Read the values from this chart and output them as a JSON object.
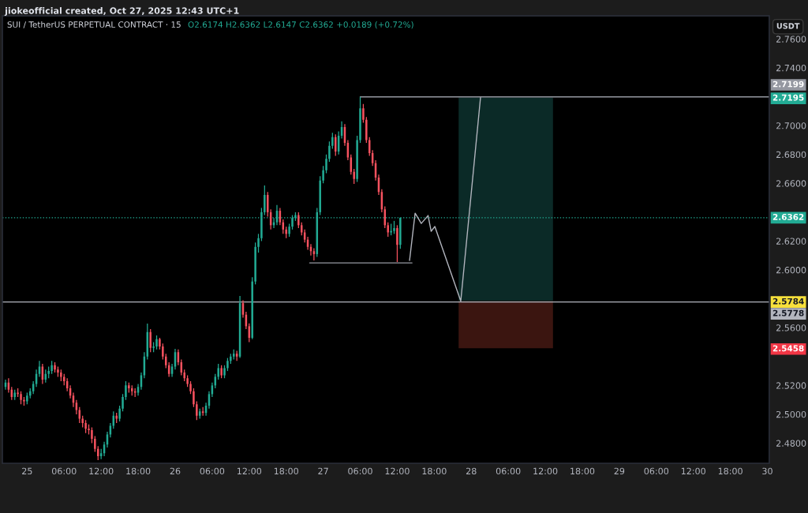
{
  "chart_data": {
    "type": "candlestick",
    "title": "SUI / TetherUS PERPETUAL CONTRACT · 15",
    "subtitle": "O2.6174 H2.6362 L2.6147 C2.6362 +0.0189 (+0.72%)",
    "y2label": "USDT",
    "annotations": [
      "jiokeofficial created, Oct 27, 2025 12:43 UTC+1"
    ],
    "xlim": [
      "2025-10-24T20:00",
      "2025-10-30T00:18"
    ],
    "ylim": [
      2.4661,
      2.776
    ],
    "xticks": [
      {
        "value": "2025-10-25",
        "label": "25"
      },
      {
        "value": "2025-10-25T06:00",
        "label": "06:00"
      },
      {
        "value": "2025-10-25T12:00",
        "label": "12:00"
      },
      {
        "value": "2025-10-25T18:00",
        "label": "18:00"
      },
      {
        "value": "2025-10-26",
        "label": "26"
      },
      {
        "value": "2025-10-26T06:00",
        "label": "06:00"
      },
      {
        "value": "2025-10-26T12:00",
        "label": "12:00"
      },
      {
        "value": "2025-10-26T18:00",
        "label": "18:00"
      },
      {
        "value": "2025-10-27",
        "label": "27"
      },
      {
        "value": "2025-10-27T06:00",
        "label": "06:00"
      },
      {
        "value": "2025-10-27T12:00",
        "label": "12:00"
      },
      {
        "value": "2025-10-27T18:00",
        "label": "18:00"
      },
      {
        "value": "2025-10-28",
        "label": "28"
      },
      {
        "value": "2025-10-28T06:00",
        "label": "06:00"
      },
      {
        "value": "2025-10-28T12:00",
        "label": "12:00"
      },
      {
        "value": "2025-10-28T18:00",
        "label": "18:00"
      },
      {
        "value": "2025-10-29",
        "label": "29"
      },
      {
        "value": "2025-10-29T06:00",
        "label": "06:00"
      },
      {
        "value": "2025-10-29T12:00",
        "label": "12:00"
      },
      {
        "value": "2025-10-29T18:00",
        "label": "18:00"
      },
      {
        "value": "2025-10-30",
        "label": "30"
      }
    ],
    "yticks": [
      {
        "value": 2.48,
        "label": "2.4800"
      },
      {
        "value": 2.5,
        "label": "2.5000"
      },
      {
        "value": 2.52,
        "label": "2.5200"
      },
      {
        "value": 2.56,
        "label": "2.5600"
      },
      {
        "value": 2.6,
        "label": "2.6000"
      },
      {
        "value": 2.62,
        "label": "2.6200"
      },
      {
        "value": 2.66,
        "label": "2.6600"
      },
      {
        "value": 2.68,
        "label": "2.6800"
      },
      {
        "value": 2.7,
        "label": "2.7000"
      },
      {
        "value": 2.74,
        "label": "2.7400"
      },
      {
        "value": 2.76,
        "label": "2.7600"
      }
    ],
    "y2lim": [
      2.4661,
      2.776
    ],
    "y2ticks": [
      2.7195,
      2.5784,
      2.5458
    ],
    "ref_lines": [
      {
        "axis": "y",
        "value": 2.5778,
        "label": "2.5778",
        "color": "#b2b5be",
        "line_style": "solid"
      },
      {
        "axis": "y",
        "value": 2.6362,
        "label": "2.6362",
        "color": "#22ab94",
        "line_style": "dotted"
      }
    ],
    "series": [
      {
        "type": "bar",
        "x": [
          "2025-10-28T05:36"
        ],
        "base": [
          2.5784
        ],
        "values": [
          0.1411
        ],
        "color": "#0b2a27"
      },
      {
        "type": "bar",
        "x": [
          "2025-10-28T05:36"
        ],
        "base": [
          2.5458
        ],
        "values": [
          0.0326
        ],
        "color": "#3b1510"
      },
      {
        "type": "line",
        "x": [
          "2025-10-27T14:00",
          "2025-10-27T14:54",
          "2025-10-27T15:54",
          "2025-10-27T17:00",
          "2025-10-27T17:30",
          "2025-10-27T18:06",
          "2025-10-27T22:18",
          "2025-10-28T01:30"
        ],
        "values": [
          2.6066,
          2.6393,
          2.6322,
          2.6377,
          2.6268,
          2.6301,
          2.5784,
          2.7195
        ],
        "color": "#b2b5be"
      },
      {
        "type": "line",
        "x": [
          "2025-10-26T21:48",
          "2025-10-27T14:24"
        ],
        "values": [
          2.6049,
          2.6049
        ],
        "color": "#9598a1"
      },
      {
        "type": "line",
        "x": [
          "2025-10-27T06:00",
          "2025-10-30T00:18"
        ],
        "values": [
          2.7199,
          2.7199
        ],
        "value_labels": [
          null,
          "2.7199"
        ],
        "color": "#9598a1"
      },
      {
        "x": [
          "2025-10-24T20:30",
          "2025-10-24T21:00",
          "2025-10-24T21:30",
          "2025-10-24T22:00",
          "2025-10-24T22:30",
          "2025-10-24T23:00",
          "2025-10-24T23:30",
          "2025-10-25T00:00",
          "2025-10-25T00:30",
          "2025-10-25T01:00",
          "2025-10-25T01:30",
          "2025-10-25T02:00",
          "2025-10-25T02:30",
          "2025-10-25T03:00",
          "2025-10-25T03:30",
          "2025-10-25T04:00",
          "2025-10-25T04:30",
          "2025-10-25T05:00",
          "2025-10-25T05:30",
          "2025-10-25T06:00",
          "2025-10-25T06:30",
          "2025-10-25T07:00",
          "2025-10-25T07:30",
          "2025-10-25T08:00",
          "2025-10-25T08:30",
          "2025-10-25T09:00",
          "2025-10-25T09:30",
          "2025-10-25T10:00",
          "2025-10-25T10:30",
          "2025-10-25T11:00",
          "2025-10-25T11:30",
          "2025-10-25T12:00",
          "2025-10-25T12:30",
          "2025-10-25T13:00",
          "2025-10-25T13:30",
          "2025-10-25T14:00",
          "2025-10-25T14:30",
          "2025-10-25T15:00",
          "2025-10-25T15:30",
          "2025-10-25T16:00",
          "2025-10-25T16:30",
          "2025-10-25T17:00",
          "2025-10-25T17:30",
          "2025-10-25T18:00",
          "2025-10-25T18:30",
          "2025-10-25T19:00",
          "2025-10-25T19:30",
          "2025-10-25T20:00",
          "2025-10-25T20:30",
          "2025-10-25T21:00",
          "2025-10-25T21:30",
          "2025-10-25T22:00",
          "2025-10-25T22:30",
          "2025-10-25T23:00",
          "2025-10-25T23:30",
          "2025-10-26T00:00",
          "2025-10-26T00:30",
          "2025-10-26T01:00",
          "2025-10-26T01:30",
          "2025-10-26T02:00",
          "2025-10-26T02:30",
          "2025-10-26T03:00",
          "2025-10-26T03:30",
          "2025-10-26T04:00",
          "2025-10-26T04:30",
          "2025-10-26T05:00",
          "2025-10-26T05:30",
          "2025-10-26T06:00",
          "2025-10-26T06:30",
          "2025-10-26T07:00",
          "2025-10-26T07:30",
          "2025-10-26T08:00",
          "2025-10-26T08:30",
          "2025-10-26T09:00",
          "2025-10-26T09:30",
          "2025-10-26T10:00",
          "2025-10-26T10:30",
          "2025-10-26T11:00",
          "2025-10-26T11:30",
          "2025-10-26T12:00",
          "2025-10-26T12:30",
          "2025-10-26T13:00",
          "2025-10-26T13:30",
          "2025-10-26T14:00",
          "2025-10-26T14:30",
          "2025-10-26T15:00",
          "2025-10-26T15:30",
          "2025-10-26T16:00",
          "2025-10-26T16:30",
          "2025-10-26T17:00",
          "2025-10-26T17:30",
          "2025-10-26T18:00",
          "2025-10-26T18:30",
          "2025-10-26T19:00",
          "2025-10-26T19:30",
          "2025-10-26T20:00",
          "2025-10-26T20:30",
          "2025-10-26T21:00",
          "2025-10-26T21:30",
          "2025-10-26T22:00",
          "2025-10-26T22:30",
          "2025-10-26T23:00",
          "2025-10-26T23:30",
          "2025-10-27T00:00",
          "2025-10-27T00:30",
          "2025-10-27T01:00",
          "2025-10-27T01:30",
          "2025-10-27T02:00",
          "2025-10-27T02:30",
          "2025-10-27T03:00",
          "2025-10-27T03:30",
          "2025-10-27T04:00",
          "2025-10-27T04:30",
          "2025-10-27T05:00",
          "2025-10-27T05:30",
          "2025-10-27T06:00",
          "2025-10-27T06:30",
          "2025-10-27T07:00",
          "2025-10-27T07:30",
          "2025-10-27T08:00",
          "2025-10-27T08:30",
          "2025-10-27T09:00",
          "2025-10-27T09:30",
          "2025-10-27T10:00",
          "2025-10-27T10:30",
          "2025-10-27T11:00",
          "2025-10-27T11:30",
          "2025-10-27T12:00",
          "2025-10-27T12:30"
        ],
        "ohlc": [
          [
            2.519,
            2.524,
            2.517,
            2.522
          ],
          [
            2.522,
            2.525,
            2.515,
            2.517
          ],
          [
            2.517,
            2.519,
            2.51,
            2.512
          ],
          [
            2.512,
            2.517,
            2.51,
            2.515
          ],
          [
            2.515,
            2.518,
            2.512,
            2.514
          ],
          [
            2.514,
            2.516,
            2.507,
            2.51
          ],
          [
            2.51,
            2.512,
            2.506,
            2.509
          ],
          [
            2.509,
            2.515,
            2.507,
            2.513
          ],
          [
            2.513,
            2.518,
            2.511,
            2.516
          ],
          [
            2.516,
            2.523,
            2.514,
            2.521
          ],
          [
            2.521,
            2.531,
            2.519,
            2.528
          ],
          [
            2.528,
            2.537,
            2.526,
            2.533
          ],
          [
            2.533,
            2.535,
            2.521,
            2.524
          ],
          [
            2.524,
            2.531,
            2.522,
            2.528
          ],
          [
            2.528,
            2.533,
            2.525,
            2.53
          ],
          [
            2.53,
            2.537,
            2.528,
            2.534
          ],
          [
            2.534,
            2.536,
            2.529,
            2.531
          ],
          [
            2.531,
            2.533,
            2.526,
            2.529
          ],
          [
            2.529,
            2.531,
            2.523,
            2.526
          ],
          [
            2.526,
            2.528,
            2.52,
            2.523
          ],
          [
            2.523,
            2.525,
            2.516,
            2.518
          ],
          [
            2.518,
            2.52,
            2.511,
            2.513
          ],
          [
            2.513,
            2.515,
            2.505,
            2.508
          ],
          [
            2.508,
            2.51,
            2.5,
            2.503
          ],
          [
            2.503,
            2.505,
            2.494,
            2.497
          ],
          [
            2.497,
            2.499,
            2.491,
            2.494
          ],
          [
            2.494,
            2.496,
            2.487,
            2.49
          ],
          [
            2.49,
            2.493,
            2.486,
            2.489
          ],
          [
            2.489,
            2.491,
            2.48,
            2.483
          ],
          [
            2.483,
            2.485,
            2.474,
            2.476
          ],
          [
            2.476,
            2.478,
            2.4683,
            2.471
          ],
          [
            2.471,
            2.476,
            2.469,
            2.473
          ],
          [
            2.473,
            2.481,
            2.471,
            2.479
          ],
          [
            2.479,
            2.488,
            2.477,
            2.486
          ],
          [
            2.486,
            2.494,
            2.484,
            2.492
          ],
          [
            2.492,
            2.502,
            2.49,
            2.499
          ],
          [
            2.499,
            2.501,
            2.494,
            2.497
          ],
          [
            2.497,
            2.506,
            2.495,
            2.504
          ],
          [
            2.504,
            2.514,
            2.502,
            2.512
          ],
          [
            2.512,
            2.523,
            2.51,
            2.52
          ],
          [
            2.52,
            2.522,
            2.515,
            2.518
          ],
          [
            2.518,
            2.52,
            2.513,
            2.516
          ],
          [
            2.516,
            2.518,
            2.512,
            2.515
          ],
          [
            2.515,
            2.521,
            2.513,
            2.519
          ],
          [
            2.519,
            2.529,
            2.517,
            2.527
          ],
          [
            2.527,
            2.543,
            2.525,
            2.54
          ],
          [
            2.54,
            2.5628,
            2.538,
            2.557
          ],
          [
            2.557,
            2.559,
            2.543,
            2.546
          ],
          [
            2.546,
            2.55,
            2.543,
            2.547
          ],
          [
            2.547,
            2.5546,
            2.545,
            2.552
          ],
          [
            2.552,
            2.553,
            2.545,
            2.547
          ],
          [
            2.547,
            2.549,
            2.538,
            2.54
          ],
          [
            2.54,
            2.542,
            2.532,
            2.534
          ],
          [
            2.534,
            2.536,
            2.526,
            2.528
          ],
          [
            2.528,
            2.535,
            2.526,
            2.533
          ],
          [
            2.533,
            2.5454,
            2.531,
            2.543
          ],
          [
            2.543,
            2.545,
            2.534,
            2.536
          ],
          [
            2.536,
            2.538,
            2.527,
            2.529
          ],
          [
            2.529,
            2.531,
            2.523,
            2.525
          ],
          [
            2.525,
            2.527,
            2.519,
            2.521
          ],
          [
            2.521,
            2.523,
            2.514,
            2.516
          ],
          [
            2.516,
            2.518,
            2.505,
            2.507
          ],
          [
            2.507,
            2.509,
            2.496,
            2.499
          ],
          [
            2.499,
            2.504,
            2.497,
            2.502
          ],
          [
            2.502,
            2.505,
            2.499,
            2.501
          ],
          [
            2.501,
            2.508,
            2.499,
            2.506
          ],
          [
            2.506,
            2.516,
            2.504,
            2.514
          ],
          [
            2.514,
            2.522,
            2.512,
            2.52
          ],
          [
            2.52,
            2.528,
            2.518,
            2.526
          ],
          [
            2.526,
            2.535,
            2.524,
            2.532
          ],
          [
            2.532,
            2.534,
            2.525,
            2.527
          ],
          [
            2.527,
            2.534,
            2.525,
            2.532
          ],
          [
            2.532,
            2.539,
            2.53,
            2.537
          ],
          [
            2.537,
            2.542,
            2.535,
            2.54
          ],
          [
            2.54,
            2.545,
            2.538,
            2.542
          ],
          [
            2.542,
            2.544,
            2.537,
            2.54
          ],
          [
            2.54,
            2.582,
            2.539,
            2.577
          ],
          [
            2.577,
            2.579,
            2.567,
            2.569
          ],
          [
            2.569,
            2.571,
            2.559,
            2.561
          ],
          [
            2.561,
            2.563,
            2.55,
            2.553
          ],
          [
            2.553,
            2.595,
            2.552,
            2.592
          ],
          [
            2.592,
            2.619,
            2.59,
            2.616
          ],
          [
            2.616,
            2.625,
            2.612,
            2.622
          ],
          [
            2.622,
            2.643,
            2.62,
            2.64
          ],
          [
            2.64,
            2.6585,
            2.638,
            2.652
          ],
          [
            2.652,
            2.654,
            2.637,
            2.64
          ],
          [
            2.64,
            2.642,
            2.628,
            2.631
          ],
          [
            2.631,
            2.636,
            2.629,
            2.633
          ],
          [
            2.633,
            2.645,
            2.631,
            2.641
          ],
          [
            2.641,
            2.643,
            2.631,
            2.633
          ],
          [
            2.633,
            2.635,
            2.625,
            2.628
          ],
          [
            2.628,
            2.63,
            2.622,
            2.625
          ],
          [
            2.625,
            2.632,
            2.623,
            2.63
          ],
          [
            2.63,
            2.638,
            2.628,
            2.636
          ],
          [
            2.636,
            2.64,
            2.634,
            2.638
          ],
          [
            2.638,
            2.64,
            2.629,
            2.631
          ],
          [
            2.631,
            2.633,
            2.624,
            2.626
          ],
          [
            2.626,
            2.628,
            2.619,
            2.621
          ],
          [
            2.621,
            2.623,
            2.614,
            2.616
          ],
          [
            2.616,
            2.618,
            2.61,
            2.613
          ],
          [
            2.613,
            2.615,
            2.6066,
            2.611
          ],
          [
            2.611,
            2.643,
            2.609,
            2.64
          ],
          [
            2.64,
            2.665,
            2.638,
            2.662
          ],
          [
            2.662,
            2.672,
            2.66,
            2.669
          ],
          [
            2.669,
            2.68,
            2.667,
            2.677
          ],
          [
            2.677,
            2.689,
            2.675,
            2.686
          ],
          [
            2.686,
            2.695,
            2.684,
            2.692
          ],
          [
            2.692,
            2.694,
            2.679,
            2.682
          ],
          [
            2.682,
            2.696,
            2.68,
            2.693
          ],
          [
            2.693,
            2.703,
            2.691,
            2.699
          ],
          [
            2.699,
            2.701,
            2.686,
            2.688
          ],
          [
            2.688,
            2.69,
            2.676,
            2.678
          ],
          [
            2.678,
            2.68,
            2.666,
            2.668
          ],
          [
            2.668,
            2.67,
            2.6596,
            2.663
          ],
          [
            2.663,
            2.693,
            2.661,
            2.69
          ],
          [
            2.69,
            2.7199,
            2.688,
            2.712
          ],
          [
            2.712,
            2.715,
            2.702,
            2.704
          ],
          [
            2.704,
            2.706,
            2.688,
            2.69
          ],
          [
            2.69,
            2.692,
            2.679,
            2.681
          ],
          [
            2.681,
            2.683,
            2.672,
            2.674
          ],
          [
            2.674,
            2.676,
            2.662,
            2.664
          ],
          [
            2.664,
            2.666,
            2.652,
            2.654
          ],
          [
            2.654,
            2.656,
            2.64,
            2.642
          ],
          [
            2.642,
            2.644,
            2.629,
            2.631
          ],
          [
            2.631,
            2.633,
            2.623,
            2.626
          ],
          [
            2.626,
            2.632,
            2.624,
            2.627
          ],
          [
            2.627,
            2.634,
            2.625,
            2.629
          ],
          [
            2.629,
            2.631,
            2.6055,
            2.6174
          ],
          [
            2.6174,
            2.6362,
            2.6147,
            2.6362
          ]
        ],
        "colors": [
          "#22ab94",
          "#f7525f",
          "#f7525f",
          "#22ab94",
          "#f7525f",
          "#f7525f",
          "#f7525f",
          "#22ab94",
          "#22ab94",
          "#22ab94",
          "#22ab94",
          "#22ab94",
          "#f7525f",
          "#22ab94",
          "#22ab94",
          "#22ab94",
          "#f7525f",
          "#f7525f",
          "#f7525f",
          "#f7525f",
          "#f7525f",
          "#f7525f",
          "#f7525f",
          "#f7525f",
          "#f7525f",
          "#f7525f",
          "#f7525f",
          "#f7525f",
          "#f7525f",
          "#f7525f",
          "#f7525f",
          "#22ab94",
          "#22ab94",
          "#22ab94",
          "#22ab94",
          "#22ab94",
          "#f7525f",
          "#22ab94",
          "#22ab94",
          "#22ab94",
          "#f7525f",
          "#f7525f",
          "#f7525f",
          "#22ab94",
          "#22ab94",
          "#22ab94",
          "#22ab94",
          "#f7525f",
          "#22ab94",
          "#22ab94",
          "#f7525f",
          "#f7525f",
          "#f7525f",
          "#f7525f",
          "#22ab94",
          "#22ab94",
          "#f7525f",
          "#f7525f",
          "#f7525f",
          "#f7525f",
          "#f7525f",
          "#f7525f",
          "#f7525f",
          "#22ab94",
          "#f7525f",
          "#22ab94",
          "#22ab94",
          "#22ab94",
          "#22ab94",
          "#22ab94",
          "#f7525f",
          "#22ab94",
          "#22ab94",
          "#22ab94",
          "#22ab94",
          "#f7525f",
          "#22ab94",
          "#f7525f",
          "#f7525f",
          "#f7525f",
          "#22ab94",
          "#22ab94",
          "#22ab94",
          "#22ab94",
          "#22ab94",
          "#f7525f",
          "#f7525f",
          "#22ab94",
          "#22ab94",
          "#f7525f",
          "#f7525f",
          "#f7525f",
          "#22ab94",
          "#22ab94",
          "#22ab94",
          "#f7525f",
          "#f7525f",
          "#f7525f",
          "#f7525f",
          "#f7525f",
          "#f7525f",
          "#22ab94",
          "#22ab94",
          "#22ab94",
          "#22ab94",
          "#22ab94",
          "#22ab94",
          "#f7525f",
          "#22ab94",
          "#22ab94",
          "#f7525f",
          "#f7525f",
          "#f7525f",
          "#f7525f",
          "#22ab94",
          "#22ab94",
          "#f7525f",
          "#f7525f",
          "#f7525f",
          "#f7525f",
          "#f7525f",
          "#f7525f",
          "#f7525f",
          "#f7525f",
          "#f7525f",
          "#22ab94",
          "#22ab94",
          "#f7525f",
          "#22ab94"
        ]
      }
    ]
  }
}
